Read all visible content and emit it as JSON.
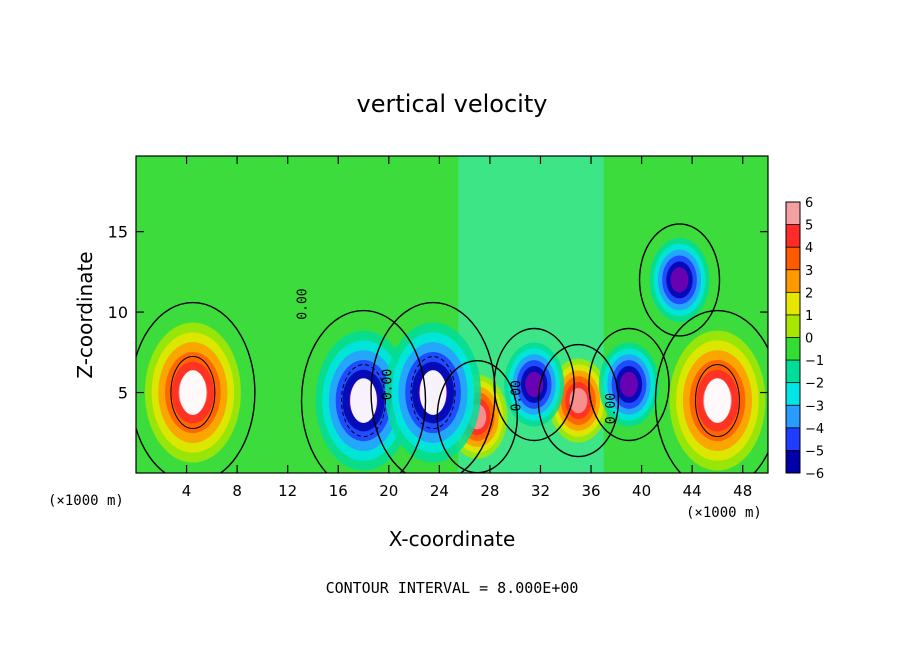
{
  "chart_data": {
    "type": "heatmap",
    "title": "vertical velocity",
    "xlabel": "X-coordinate",
    "ylabel": "Z-coordinate",
    "x_unit_label_left": "(×1000 m)",
    "x_unit_label_right": "(×1000 m)",
    "footer": "CONTOUR INTERVAL = 8.000E+00",
    "xlim": [
      0,
      50
    ],
    "ylim": [
      0,
      19.7
    ],
    "x_ticks": [
      4,
      8,
      12,
      16,
      20,
      24,
      28,
      32,
      36,
      40,
      44,
      48
    ],
    "y_ticks": [
      5,
      10,
      15
    ],
    "contour_labels": [
      {
        "text": "0.00",
        "x": 13.5,
        "z": 10.5
      },
      {
        "text": "0.00",
        "x": 20.2,
        "z": 5.5
      },
      {
        "text": "0.00",
        "x": 30.4,
        "z": 4.8
      },
      {
        "text": "0.00",
        "x": 37.9,
        "z": 4.0
      }
    ],
    "colorbar": {
      "levels": [
        6,
        5,
        4,
        3,
        2,
        1,
        0,
        -1,
        -2,
        -3,
        -4,
        -5,
        -6
      ],
      "colors": [
        "#f4a0a0",
        "#ff2a2a",
        "#ff5a00",
        "#ff9900",
        "#e6e600",
        "#a8e600",
        "#33dd33",
        "#00dd99",
        "#00e6e6",
        "#2a9bff",
        "#1f3cff",
        "#0000aa",
        "#7a00b0"
      ]
    },
    "features": [
      {
        "sign": "up",
        "x": 4.5,
        "z": 5.0,
        "peak": 8,
        "desc": "strong updraft core"
      },
      {
        "sign": "up",
        "x": 27.0,
        "z": 3.5,
        "peak": 7
      },
      {
        "sign": "up",
        "x": 35.0,
        "z": 4.5,
        "peak": 6
      },
      {
        "sign": "up",
        "x": 46.0,
        "z": 4.5,
        "peak": 8
      },
      {
        "sign": "down",
        "x": 18.0,
        "z": 4.5,
        "peak": -8
      },
      {
        "sign": "down",
        "x": 23.5,
        "z": 5.0,
        "peak": -8
      },
      {
        "sign": "down",
        "x": 31.5,
        "z": 5.5,
        "peak": -6
      },
      {
        "sign": "down",
        "x": 39.0,
        "z": 5.5,
        "peak": -6
      },
      {
        "sign": "down",
        "x": 43.0,
        "z": 12.0,
        "peak": -5
      }
    ]
  }
}
